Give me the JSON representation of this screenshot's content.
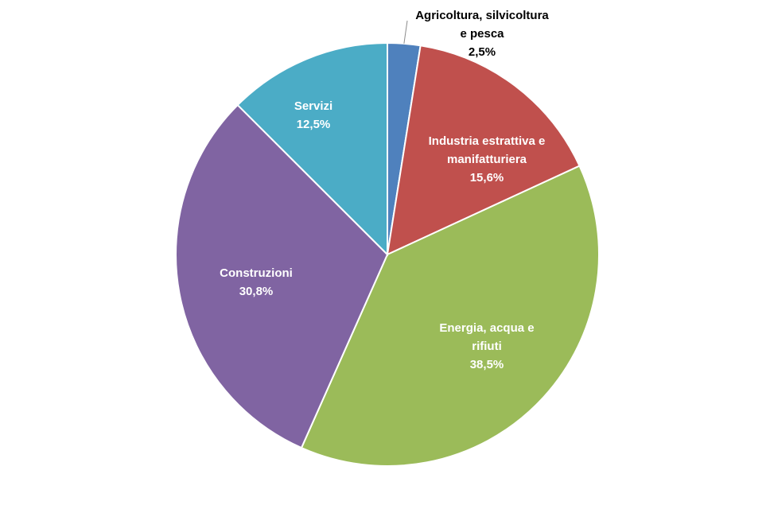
{
  "chart_data": {
    "type": "pie",
    "title": "",
    "start_angle_deg": 0,
    "direction": "clockwise",
    "slices": [
      {
        "label_lines": [
          "Agricoltura, silvicoltura",
          "e pesca"
        ],
        "value_label": "2,5%",
        "value": 2.5,
        "color": "#4f81bd",
        "label_color": "#000000",
        "label_outside": true
      },
      {
        "label_lines": [
          "Industria estrattiva e",
          "manifatturiera"
        ],
        "value_label": "15,6%",
        "value": 15.6,
        "color": "#c0504d",
        "label_color": "#ffffff",
        "label_outside": false
      },
      {
        "label_lines": [
          "Energia, acqua e",
          "rifiuti"
        ],
        "value_label": "38,5%",
        "value": 38.5,
        "color": "#9bbb59",
        "label_color": "#ffffff",
        "label_outside": false
      },
      {
        "label_lines": [
          "Construzioni"
        ],
        "value_label": "30,8%",
        "value": 30.8,
        "color": "#8064a2",
        "label_color": "#ffffff",
        "label_outside": false
      },
      {
        "label_lines": [
          "Servizi"
        ],
        "value_label": "12,5%",
        "value": 12.5,
        "color": "#4bacc6",
        "label_color": "#ffffff",
        "label_outside": false
      }
    ]
  }
}
